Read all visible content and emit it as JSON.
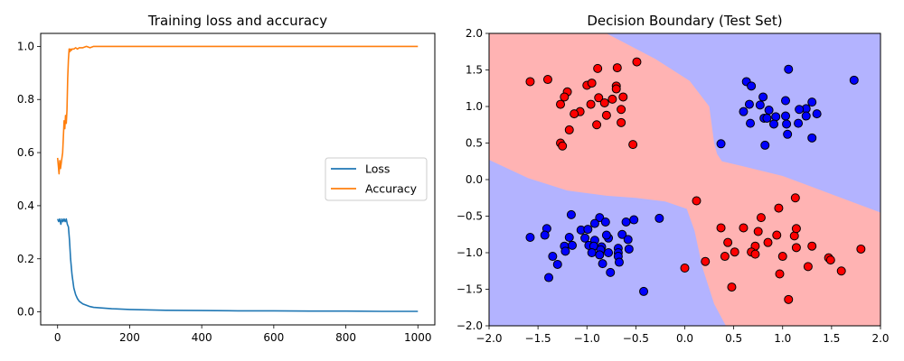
{
  "chart_data": [
    {
      "type": "line",
      "title": "Training loss and accuracy",
      "xlabel": "",
      "ylabel": "",
      "xlim": [
        -47,
        1047
      ],
      "ylim": [
        -0.049,
        1.049
      ],
      "xticks": [
        0,
        200,
        400,
        600,
        800,
        1000
      ],
      "xtick_labels": [
        "0",
        "200",
        "400",
        "600",
        "800",
        "1000"
      ],
      "yticks": [
        0.0,
        0.2,
        0.4,
        0.6,
        0.8,
        1.0
      ],
      "ytick_labels": [
        "0.0",
        "0.2",
        "0.4",
        "0.6",
        "0.8",
        "1.0"
      ],
      "grid": false,
      "legend": {
        "placement": "center-right",
        "entries": [
          "Loss",
          "Accuracy"
        ]
      },
      "series": [
        {
          "name": "Loss",
          "color": "#1f77b4",
          "x": [
            0,
            3,
            6,
            9,
            12,
            15,
            18,
            21,
            24,
            27,
            30,
            33,
            36,
            40,
            45,
            50,
            55,
            60,
            70,
            80,
            90,
            100,
            150,
            200,
            300,
            400,
            500,
            600,
            700,
            800,
            900,
            1000
          ],
          "y": [
            0.35,
            0.34,
            0.35,
            0.33,
            0.35,
            0.34,
            0.35,
            0.34,
            0.35,
            0.33,
            0.32,
            0.27,
            0.2,
            0.14,
            0.09,
            0.065,
            0.05,
            0.04,
            0.03,
            0.025,
            0.02,
            0.017,
            0.012,
            0.009,
            0.006,
            0.005,
            0.004,
            0.004,
            0.003,
            0.003,
            0.002,
            0.002
          ]
        },
        {
          "name": "Accuracy",
          "color": "#ff7f0e",
          "x": [
            0,
            2,
            4,
            6,
            8,
            10,
            12,
            14,
            16,
            18,
            20,
            22,
            24,
            26,
            28,
            30,
            32,
            34,
            36,
            38,
            40,
            45,
            50,
            55,
            60,
            70,
            80,
            90,
            100,
            150,
            200,
            400,
            600,
            800,
            1000
          ],
          "y": [
            0.58,
            0.55,
            0.52,
            0.57,
            0.54,
            0.56,
            0.58,
            0.6,
            0.66,
            0.72,
            0.69,
            0.74,
            0.71,
            0.76,
            0.88,
            0.95,
            0.99,
            0.98,
            0.99,
            0.985,
            0.99,
            0.99,
            0.995,
            0.99,
            0.995,
            0.995,
            1.0,
            0.995,
            1.0,
            1.0,
            1.0,
            1.0,
            1.0,
            1.0,
            1.0
          ]
        }
      ]
    },
    {
      "type": "scatter",
      "title": "Decision Boundary (Test Set)",
      "xlabel": "",
      "ylabel": "",
      "xlim": [
        -2.0,
        2.0
      ],
      "ylim": [
        -2.0,
        2.0
      ],
      "xticks": [
        -2.0,
        -1.5,
        -1.0,
        -0.5,
        0.0,
        0.5,
        1.0,
        1.5,
        2.0
      ],
      "xtick_labels": [
        "−2.0",
        "−1.5",
        "−1.0",
        "−0.5",
        "0.0",
        "0.5",
        "1.0",
        "1.5",
        "2.0"
      ],
      "yticks": [
        -2.0,
        -1.5,
        -1.0,
        -0.5,
        0.0,
        0.5,
        1.0,
        1.5,
        2.0
      ],
      "ytick_labels": [
        "−2.0",
        "−1.5",
        "−1.0",
        "−0.5",
        "0.0",
        "0.5",
        "1.0",
        "1.5",
        "2.0"
      ],
      "grid": false,
      "region_colors": {
        "red": "#ffb3b3",
        "blue": "#b3b3ff"
      },
      "boundary": {
        "upper": [
          [
            -0.8,
            2.0
          ],
          [
            -0.3,
            1.65
          ],
          [
            0.05,
            1.35
          ],
          [
            0.25,
            1.0
          ],
          [
            0.3,
            0.5
          ],
          [
            0.33,
            0.35
          ],
          [
            0.38,
            0.25
          ],
          [
            0.6,
            0.18
          ],
          [
            1.0,
            0.05
          ],
          [
            1.5,
            -0.2
          ],
          [
            2.0,
            -0.45
          ]
        ],
        "lower": [
          [
            -2.0,
            0.27
          ],
          [
            -1.6,
            0.02
          ],
          [
            -1.2,
            -0.15
          ],
          [
            -0.8,
            -0.22
          ],
          [
            -0.5,
            -0.25
          ],
          [
            -0.2,
            -0.3
          ],
          [
            0.02,
            -0.4
          ],
          [
            0.1,
            -0.7
          ],
          [
            0.18,
            -1.2
          ],
          [
            0.3,
            -1.7
          ],
          [
            0.42,
            -2.0
          ]
        ]
      },
      "series": [
        {
          "class": "red",
          "color": "#ff0000",
          "points": [
            [
              -1.58,
              1.34
            ],
            [
              -1.4,
              1.37
            ],
            [
              -0.89,
              1.52
            ],
            [
              -0.69,
              1.53
            ],
            [
              -0.49,
              1.61
            ],
            [
              -1.0,
              1.29
            ],
            [
              -0.95,
              1.32
            ],
            [
              -0.7,
              1.28
            ],
            [
              -0.7,
              1.24
            ],
            [
              -0.63,
              1.13
            ],
            [
              -1.2,
              1.2
            ],
            [
              -1.23,
              1.13
            ],
            [
              -1.27,
              1.03
            ],
            [
              -0.88,
              1.12
            ],
            [
              -0.82,
              1.05
            ],
            [
              -0.74,
              1.1
            ],
            [
              -0.96,
              1.03
            ],
            [
              -1.07,
              0.93
            ],
            [
              -0.65,
              0.96
            ],
            [
              -1.13,
              0.9
            ],
            [
              -0.8,
              0.88
            ],
            [
              -0.9,
              0.75
            ],
            [
              -0.65,
              0.78
            ],
            [
              -1.18,
              0.68
            ],
            [
              -1.27,
              0.5
            ],
            [
              -1.25,
              0.46
            ],
            [
              -0.53,
              0.48
            ],
            [
              0.12,
              -0.29
            ],
            [
              0.37,
              -0.66
            ],
            [
              0.6,
              -0.66
            ],
            [
              0.78,
              -0.52
            ],
            [
              0.96,
              -0.39
            ],
            [
              1.13,
              -0.25
            ],
            [
              1.12,
              -0.77
            ],
            [
              1.14,
              -0.67
            ],
            [
              0.44,
              -0.86
            ],
            [
              0.75,
              -0.71
            ],
            [
              0.72,
              -0.91
            ],
            [
              0.85,
              -0.86
            ],
            [
              0.94,
              -0.76
            ],
            [
              0.51,
              -0.99
            ],
            [
              0.68,
              -0.99
            ],
            [
              0.72,
              -1.02
            ],
            [
              1.14,
              -0.93
            ],
            [
              1.3,
              -0.91
            ],
            [
              1.8,
              -0.95
            ],
            [
              0.41,
              -1.05
            ],
            [
              1.0,
              -1.05
            ],
            [
              1.47,
              -1.07
            ],
            [
              1.49,
              -1.1
            ],
            [
              0.21,
              -1.12
            ],
            [
              1.26,
              -1.19
            ],
            [
              0.0,
              -1.21
            ],
            [
              1.6,
              -1.25
            ],
            [
              0.97,
              -1.29
            ],
            [
              0.48,
              -1.47
            ],
            [
              1.06,
              -1.64
            ]
          ]
        },
        {
          "class": "blue",
          "color": "#0000ff",
          "points": [
            [
              0.63,
              1.34
            ],
            [
              0.68,
              1.28
            ],
            [
              1.06,
              1.51
            ],
            [
              1.73,
              1.36
            ],
            [
              0.8,
              1.13
            ],
            [
              0.66,
              1.03
            ],
            [
              0.77,
              1.02
            ],
            [
              0.6,
              0.93
            ],
            [
              1.03,
              1.08
            ],
            [
              1.3,
              1.06
            ],
            [
              1.24,
              0.97
            ],
            [
              1.17,
              0.96
            ],
            [
              1.24,
              0.87
            ],
            [
              1.35,
              0.9
            ],
            [
              0.86,
              0.95
            ],
            [
              0.81,
              0.84
            ],
            [
              0.84,
              0.84
            ],
            [
              0.93,
              0.86
            ],
            [
              1.03,
              0.87
            ],
            [
              0.67,
              0.77
            ],
            [
              0.91,
              0.76
            ],
            [
              1.04,
              0.76
            ],
            [
              1.16,
              0.77
            ],
            [
              1.05,
              0.62
            ],
            [
              1.3,
              0.57
            ],
            [
              0.37,
              0.49
            ],
            [
              0.82,
              0.47
            ],
            [
              -1.16,
              -0.48
            ],
            [
              -0.87,
              -0.52
            ],
            [
              -0.81,
              -0.58
            ],
            [
              -0.92,
              -0.6
            ],
            [
              -0.6,
              -0.58
            ],
            [
              -0.52,
              -0.55
            ],
            [
              -0.26,
              -0.53
            ],
            [
              -1.41,
              -0.67
            ],
            [
              -1.58,
              -0.79
            ],
            [
              -1.43,
              -0.76
            ],
            [
              -1.06,
              -0.69
            ],
            [
              -0.99,
              -0.68
            ],
            [
              -1.02,
              -0.8
            ],
            [
              -1.18,
              -0.79
            ],
            [
              -0.92,
              -0.83
            ],
            [
              -0.78,
              -0.8
            ],
            [
              -0.8,
              -0.76
            ],
            [
              -0.64,
              -0.75
            ],
            [
              -0.58,
              -0.82
            ],
            [
              -1.23,
              -0.91
            ],
            [
              -1.15,
              -0.9
            ],
            [
              -0.98,
              -0.9
            ],
            [
              -0.93,
              -0.91
            ],
            [
              -0.85,
              -0.92
            ],
            [
              -0.86,
              -0.96
            ],
            [
              -1.22,
              -0.98
            ],
            [
              -0.95,
              -1.0
            ],
            [
              -0.87,
              -1.03
            ],
            [
              -0.78,
              -1.0
            ],
            [
              -0.68,
              -0.94
            ],
            [
              -0.57,
              -0.95
            ],
            [
              -1.35,
              -1.05
            ],
            [
              -0.68,
              -1.0
            ],
            [
              -0.68,
              -1.05
            ],
            [
              -1.3,
              -1.16
            ],
            [
              -0.84,
              -1.15
            ],
            [
              -0.67,
              -1.13
            ],
            [
              -0.76,
              -1.27
            ],
            [
              -1.39,
              -1.34
            ],
            [
              -0.42,
              -1.53
            ]
          ]
        }
      ]
    }
  ]
}
